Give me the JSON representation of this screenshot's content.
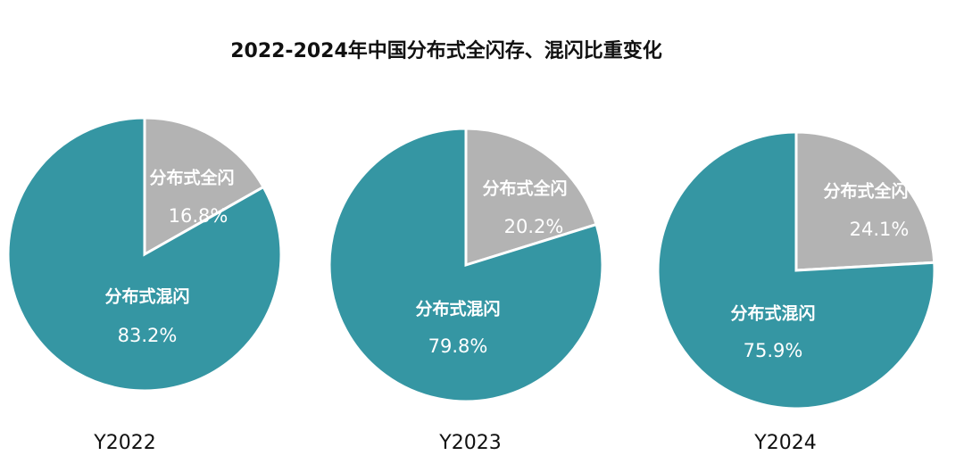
{
  "title": "2022-2024年中国分布式全闪存、混闪比重变化",
  "chart_data": [
    {
      "type": "pie",
      "title": "Y2022",
      "categories": [
        "分布式全闪",
        "分布式混闪"
      ],
      "values": [
        16.8,
        83.2
      ],
      "value_labels": [
        "16.8%",
        "83.2%"
      ],
      "colors": [
        "#b3b3b3",
        "#3596a3"
      ]
    },
    {
      "type": "pie",
      "title": "Y2023",
      "categories": [
        "分布式全闪",
        "分布式混闪"
      ],
      "values": [
        20.2,
        79.8
      ],
      "value_labels": [
        "20.2%",
        "79.8%"
      ],
      "colors": [
        "#b3b3b3",
        "#3596a3"
      ]
    },
    {
      "type": "pie",
      "title": "Y2024",
      "categories": [
        "分布式全闪",
        "分布式混闪"
      ],
      "values": [
        24.1,
        75.9
      ],
      "value_labels": [
        "24.1%",
        "75.9%"
      ],
      "colors": [
        "#b3b3b3",
        "#3596a3"
      ]
    }
  ]
}
